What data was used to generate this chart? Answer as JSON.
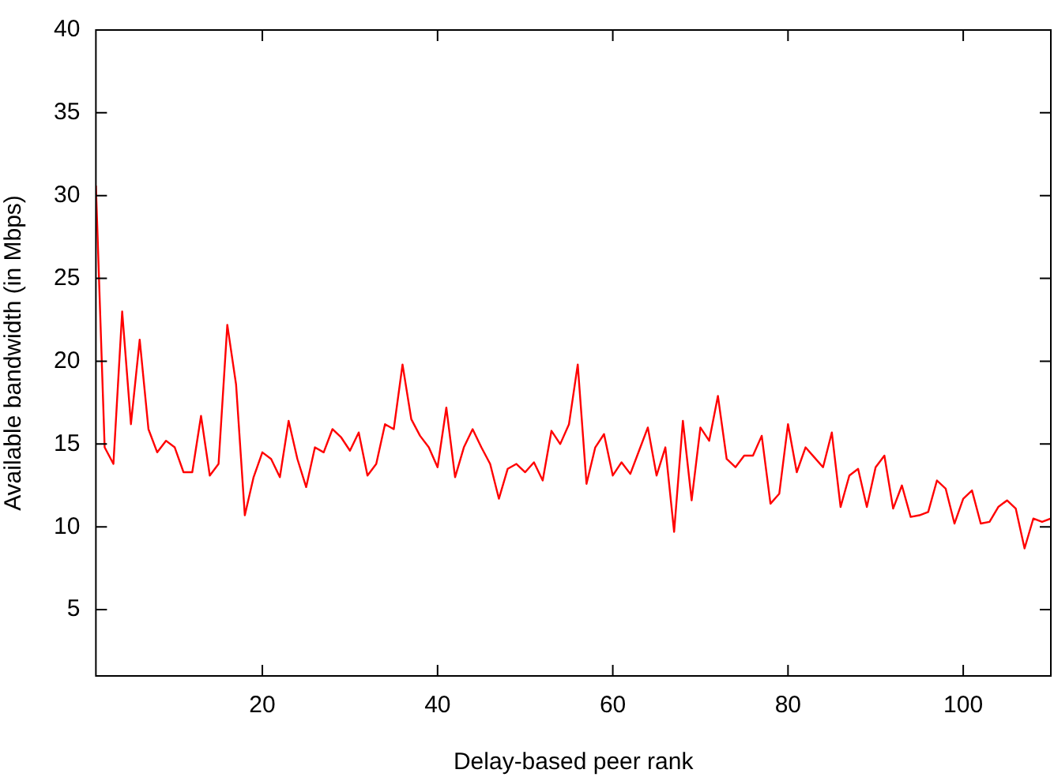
{
  "chart_data": {
    "type": "line",
    "xlabel": "Delay-based peer rank",
    "ylabel": "Available bandwidth (in Mbps)",
    "x": [
      1,
      2,
      3,
      4,
      5,
      6,
      7,
      8,
      9,
      10,
      11,
      12,
      13,
      14,
      15,
      16,
      17,
      18,
      19,
      20,
      21,
      22,
      23,
      24,
      25,
      26,
      27,
      28,
      29,
      30,
      31,
      32,
      33,
      34,
      35,
      36,
      37,
      38,
      39,
      40,
      41,
      42,
      43,
      44,
      45,
      46,
      47,
      48,
      49,
      50,
      51,
      52,
      53,
      54,
      55,
      56,
      57,
      58,
      59,
      60,
      61,
      62,
      63,
      64,
      65,
      66,
      67,
      68,
      69,
      70,
      71,
      72,
      73,
      74,
      75,
      76,
      77,
      78,
      79,
      80,
      81,
      82,
      83,
      84,
      85,
      86,
      87,
      88,
      89,
      90,
      91,
      92,
      93,
      94,
      95,
      96,
      97,
      98,
      99,
      100,
      101,
      102,
      103,
      104,
      105,
      106,
      107,
      108,
      109,
      110
    ],
    "series": [
      {
        "color": "#ff0000",
        "values": [
          30.6,
          14.8,
          13.8,
          23.0,
          16.2,
          21.3,
          15.9,
          14.5,
          15.2,
          14.8,
          13.3,
          13.3,
          16.7,
          13.1,
          13.8,
          22.2,
          18.6,
          10.7,
          13.0,
          14.5,
          14.1,
          13.0,
          16.4,
          14.1,
          12.4,
          14.8,
          14.5,
          15.9,
          15.4,
          14.6,
          15.7,
          13.1,
          13.8,
          16.2,
          15.9,
          19.8,
          16.5,
          15.5,
          14.8,
          13.6,
          17.2,
          13.0,
          14.8,
          15.9,
          14.8,
          13.8,
          11.7,
          13.5,
          13.8,
          13.3,
          13.9,
          12.8,
          15.8,
          15.0,
          16.2,
          19.8,
          12.6,
          14.8,
          15.6,
          13.1,
          13.9,
          13.2,
          14.6,
          16.0,
          13.1,
          14.8,
          9.7,
          16.4,
          11.6,
          16.0,
          15.2,
          17.9,
          14.1,
          13.6,
          14.3,
          14.3,
          15.5,
          11.4,
          12.0,
          16.2,
          13.3,
          14.8,
          14.2,
          13.6,
          15.7,
          11.2,
          13.1,
          13.5,
          11.2,
          13.6,
          14.3,
          11.1,
          12.5,
          10.6,
          10.7,
          10.9,
          12.8,
          12.3,
          10.2,
          11.7,
          12.2,
          10.2,
          10.3,
          11.2,
          11.6,
          11.1,
          8.7,
          10.5,
          10.3,
          10.5
        ]
      }
    ],
    "xlim": [
      1,
      110
    ],
    "xticks": [
      20,
      40,
      60,
      80,
      100
    ],
    "ylim": [
      1,
      40
    ],
    "yticks": [
      5,
      10,
      15,
      20,
      25,
      30,
      35,
      40
    ],
    "marker": "none",
    "line_style": "solid",
    "legend": false
  }
}
